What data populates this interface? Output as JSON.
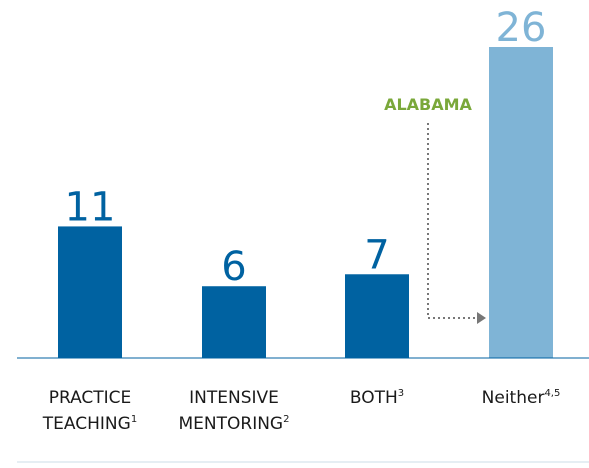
{
  "chart_data": {
    "type": "bar",
    "categories": [
      [
        "PRACTICE",
        "TEACHING"
      ],
      [
        "INTENSIVE",
        "MENTORING"
      ],
      [
        "BOTH"
      ],
      [
        "Neither"
      ]
    ],
    "category_notes": [
      "1",
      "2",
      "3",
      "4,5"
    ],
    "values": [
      11,
      6,
      7,
      26
    ],
    "colors": [
      "#0062a1",
      "#0062a1",
      "#0062a1",
      "#7fb4d6"
    ],
    "annotation": {
      "text": "ALABAMA",
      "color": "#7aa83a",
      "points_to": 3
    }
  }
}
